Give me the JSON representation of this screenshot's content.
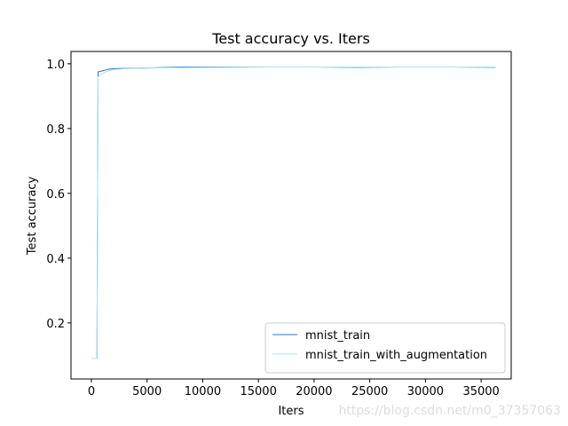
{
  "chart_data": {
    "type": "line",
    "title": "Test accuracy  vs. Iters",
    "x_label": "Iters",
    "y_label": "Test accuracy",
    "x": [
      0,
      500,
      600,
      1000,
      1500,
      2000,
      3000,
      5000,
      8000,
      12000,
      16000,
      20000,
      24000,
      28000,
      32000,
      36300
    ],
    "series": [
      {
        "name": "mnist_train",
        "color": "#1f77d0",
        "values": [
          0.09,
          0.09,
          0.975,
          0.978,
          0.983,
          0.985,
          0.986,
          0.987,
          0.99,
          0.99,
          0.99,
          0.99,
          0.989,
          0.99,
          0.99,
          0.989
        ]
      },
      {
        "name": "mnist_train_with_augmentation",
        "color": "#a8e4f0",
        "values": [
          0.09,
          0.09,
          0.96,
          0.97,
          0.978,
          0.982,
          0.985,
          0.987,
          0.988,
          0.989,
          0.99,
          0.99,
          0.99,
          0.99,
          0.99,
          0.99
        ]
      }
    ],
    "xlim": [
      -1830,
      37700
    ],
    "ylim": [
      0.027,
      1.038
    ],
    "xticks": [
      0,
      5000,
      10000,
      15000,
      20000,
      25000,
      30000,
      35000
    ],
    "yticks": [
      0.2,
      0.4,
      0.6,
      0.8,
      {
        "value": 1,
        "label": "1.0"
      }
    ],
    "legend": "lower right",
    "grid": false,
    "watermark": "https://blog.csdn.net/m0_37357063"
  }
}
